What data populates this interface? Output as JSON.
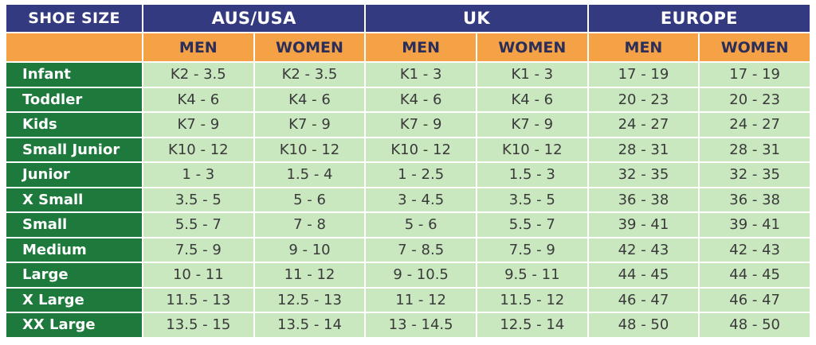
{
  "table": {
    "corner_label": "SHOE SIZE",
    "groups": [
      "AUS/USA",
      "UK",
      "EUROPE"
    ],
    "gender_labels": [
      "MEN",
      "WOMEN",
      "MEN",
      "WOMEN",
      "MEN",
      "WOMEN"
    ],
    "rows": [
      {
        "label": "Infant",
        "values": [
          "K2 - 3.5",
          "K2 - 3.5",
          "K1 - 3",
          "K1 - 3",
          "17 - 19",
          "17 - 19"
        ]
      },
      {
        "label": "Toddler",
        "values": [
          "K4 - 6",
          "K4 - 6",
          "K4 - 6",
          "K4 - 6",
          "20 - 23",
          "20 - 23"
        ]
      },
      {
        "label": "Kids",
        "values": [
          "K7 - 9",
          "K7 - 9",
          "K7 - 9",
          "K7 - 9",
          "24 - 27",
          "24 - 27"
        ]
      },
      {
        "label": "Small Junior",
        "values": [
          "K10 - 12",
          "K10 - 12",
          "K10 - 12",
          "K10 - 12",
          "28 - 31",
          "28 - 31"
        ]
      },
      {
        "label": "Junior",
        "values": [
          "1 - 3",
          "1.5 - 4",
          "1 - 2.5",
          "1.5 - 3",
          "32 - 35",
          "32 - 35"
        ]
      },
      {
        "label": "X Small",
        "values": [
          "3.5 - 5",
          "5 - 6",
          "3 - 4.5",
          "3.5 - 5",
          "36 - 38",
          "36 - 38"
        ]
      },
      {
        "label": "Small",
        "values": [
          "5.5 - 7",
          "7 - 8",
          "5 - 6",
          "5.5 - 7",
          "39 - 41",
          "39 - 41"
        ]
      },
      {
        "label": "Medium",
        "values": [
          "7.5 - 9",
          "9 - 10",
          "7 - 8.5",
          "7.5 - 9",
          "42 - 43",
          "42 - 43"
        ]
      },
      {
        "label": "Large",
        "values": [
          "10 - 11",
          "11 - 12",
          "9 - 10.5",
          "9.5 - 11",
          "44 - 45",
          "44 - 45"
        ]
      },
      {
        "label": "X Large",
        "values": [
          "11.5 - 13",
          "12.5 - 13",
          "11 - 12",
          "11.5 - 12",
          "46 - 47",
          "46 - 47"
        ]
      },
      {
        "label": "XX Large",
        "values": [
          "13.5 - 15",
          "13.5 - 14",
          "13 - 14.5",
          "12.5 - 14",
          "48 - 50",
          "48 - 50"
        ]
      }
    ]
  },
  "colors": {
    "header_bg": "#343a80",
    "subheader_bg": "#f5a246",
    "row_label_bg": "#1d7a3c",
    "cell_bg": "#c9e8c0"
  }
}
